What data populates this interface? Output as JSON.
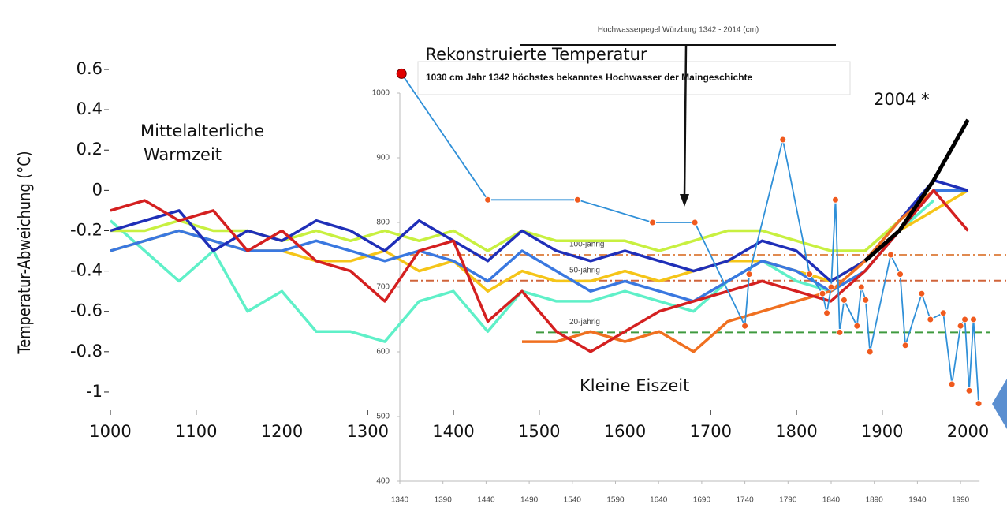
{
  "chart_data": [
    {
      "type": "line",
      "title": "Rekonstruierte Temperatur",
      "y_label": "Temperatur-Abweichung (°C)",
      "annotations": [
        "Mittelalterliche",
        "Warmzeit",
        "Kleine Eiszeit",
        "2004 *"
      ],
      "x": [
        1000,
        1040,
        1080,
        1120,
        1160,
        1200,
        1240,
        1280,
        1320,
        1360,
        1400,
        1440,
        1480,
        1520,
        1560,
        1600,
        1640,
        1680,
        1720,
        1760,
        1800,
        1840,
        1880,
        1920,
        1960,
        2000
      ],
      "xlim": [
        1000,
        2000
      ],
      "xticks": [
        1000,
        1100,
        1200,
        1300,
        1400,
        1500,
        1600,
        1700,
        1800,
        1900,
        2000
      ],
      "ylim": [
        -1.1,
        0.6
      ],
      "yticks": [
        0.6,
        0.4,
        0.2,
        0,
        -0.2,
        -0.4,
        -0.6,
        -0.8,
        -1
      ],
      "series": [
        {
          "color": "#5ff0c8",
          "values": [
            -0.15,
            -0.3,
            -0.45,
            -0.3,
            -0.6,
            -0.5,
            -0.7,
            -0.7,
            -0.75,
            -0.55,
            -0.5,
            -0.7,
            -0.5,
            -0.55,
            -0.55,
            -0.5,
            -0.55,
            -0.6,
            -0.45,
            -0.35,
            -0.45,
            -0.5,
            -0.4,
            -0.2,
            -0.05,
            null
          ]
        },
        {
          "color": "#c8f040",
          "values": [
            -0.2,
            -0.2,
            -0.15,
            -0.2,
            -0.2,
            -0.25,
            -0.2,
            -0.25,
            -0.2,
            -0.25,
            -0.2,
            -0.3,
            -0.2,
            -0.25,
            -0.25,
            -0.25,
            -0.3,
            -0.25,
            -0.2,
            -0.2,
            -0.25,
            -0.3,
            -0.3,
            -0.15,
            0.0,
            null
          ]
        },
        {
          "color": "#f5c518",
          "values": [
            -0.3,
            -0.25,
            -0.2,
            -0.25,
            -0.3,
            -0.3,
            -0.35,
            -0.35,
            -0.3,
            -0.4,
            -0.35,
            -0.5,
            -0.4,
            -0.45,
            -0.45,
            -0.4,
            -0.45,
            -0.4,
            -0.35,
            -0.35,
            -0.4,
            -0.45,
            -0.35,
            -0.2,
            -0.1,
            0.0
          ]
        },
        {
          "color": "#3a78e0",
          "values": [
            -0.3,
            -0.25,
            -0.2,
            -0.25,
            -0.3,
            -0.3,
            -0.25,
            -0.3,
            -0.35,
            -0.3,
            -0.35,
            -0.45,
            -0.3,
            -0.4,
            -0.5,
            -0.45,
            -0.5,
            -0.55,
            -0.45,
            -0.35,
            -0.4,
            -0.5,
            -0.4,
            -0.2,
            0.0,
            0.0
          ]
        },
        {
          "color": "#1f2fb8",
          "values": [
            -0.2,
            -0.15,
            -0.1,
            -0.3,
            -0.2,
            -0.25,
            -0.15,
            -0.2,
            -0.3,
            -0.15,
            -0.25,
            -0.35,
            -0.2,
            -0.3,
            -0.35,
            -0.3,
            -0.35,
            -0.4,
            -0.35,
            -0.25,
            -0.3,
            -0.45,
            -0.35,
            -0.15,
            0.05,
            0.0
          ]
        },
        {
          "color": "#f07020",
          "values": [
            null,
            null,
            null,
            null,
            null,
            null,
            null,
            null,
            null,
            null,
            null,
            null,
            -0.75,
            -0.75,
            -0.7,
            -0.75,
            -0.7,
            -0.8,
            -0.65,
            -0.6,
            -0.55,
            -0.5,
            -0.35,
            -0.15,
            0.0,
            null
          ]
        },
        {
          "color": "#d42020",
          "values": [
            -0.1,
            -0.05,
            -0.15,
            -0.1,
            -0.3,
            -0.2,
            -0.35,
            -0.4,
            -0.55,
            -0.3,
            -0.25,
            -0.65,
            -0.5,
            -0.7,
            -0.8,
            -0.7,
            -0.6,
            -0.55,
            -0.5,
            -0.45,
            -0.5,
            -0.55,
            -0.4,
            -0.2,
            0.0,
            -0.2
          ]
        },
        {
          "color": "#000000",
          "values": [
            null,
            null,
            null,
            null,
            null,
            null,
            null,
            null,
            null,
            null,
            null,
            null,
            null,
            null,
            null,
            null,
            null,
            null,
            null,
            null,
            null,
            null,
            -0.35,
            -0.2,
            0.05,
            0.35
          ]
        }
      ]
    },
    {
      "type": "line",
      "title": "Hochwasserpegel Würzburg 1342 - 2014 (cm)",
      "annotation": "1030 cm Jahr 1342 höchstes bekanntes Hochwasser der Maingeschichte",
      "x": [
        1342,
        1442,
        1546,
        1633,
        1682,
        1740,
        1745,
        1784,
        1815,
        1830,
        1835,
        1840,
        1845,
        1850,
        1855,
        1870,
        1875,
        1880,
        1885,
        1909,
        1920,
        1926,
        1945,
        1955,
        1970,
        1980,
        1990,
        1995,
        2000,
        2005,
        2011
      ],
      "values": [
        1030,
        835,
        835,
        800,
        800,
        640,
        720,
        928,
        720,
        690,
        660,
        700,
        835,
        630,
        680,
        640,
        700,
        680,
        600,
        750,
        720,
        610,
        690,
        650,
        660,
        550,
        640,
        650,
        540,
        650,
        520
      ],
      "color": "#3090d8",
      "marker_color": "#f05a1e",
      "xlim": [
        1340,
        2012
      ],
      "xticks": [
        1340,
        1390,
        1440,
        1490,
        1540,
        1590,
        1640,
        1690,
        1740,
        1790,
        1840,
        1890,
        1940,
        1990
      ],
      "ylim": [
        400,
        1000
      ],
      "yticks": [
        400,
        500,
        600,
        700,
        800,
        900,
        1000
      ],
      "reference_lines": [
        {
          "label": "100-jährig",
          "value": 750,
          "color": "#e08a50"
        },
        {
          "label": "50-jährig",
          "value": 710,
          "color": "#d0643a"
        },
        {
          "label": "20-jährig",
          "value": 630,
          "color": "#3f9a3f"
        }
      ]
    }
  ]
}
